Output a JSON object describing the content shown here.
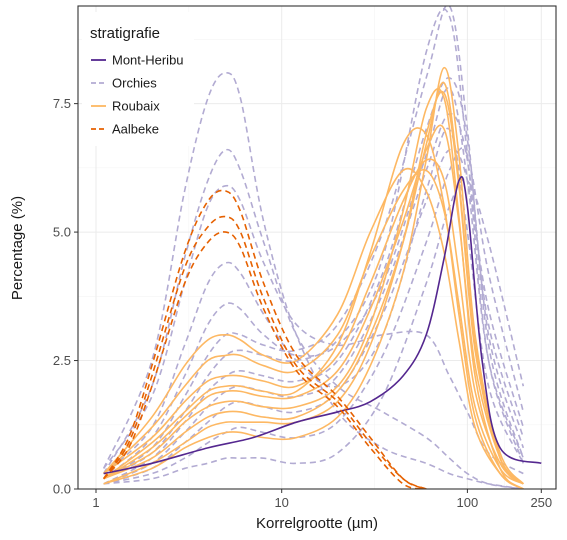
{
  "chart_data": {
    "type": "line",
    "xscale": "log10",
    "xlabel": "Korrelgrootte (µm)",
    "ylabel": "Percentage (%)",
    "xlim": [
      0.8,
      300
    ],
    "ylim": [
      0,
      9.4
    ],
    "x_ticks": [
      1,
      10,
      100,
      250
    ],
    "y_ticks": [
      0.0,
      2.5,
      5.0,
      7.5
    ],
    "y_tick_labels": [
      "0.0",
      "2.5",
      "5.0",
      "7.5"
    ],
    "grid": true,
    "legend": {
      "title": "stratigrafie",
      "position": "top-left"
    },
    "groups": [
      {
        "name": "Mont-Heribu",
        "color": "#54278f",
        "dash": "solid",
        "curves": [
          {
            "x": [
              1.1,
              2,
              4,
              7,
              12,
              20,
              30,
              45,
              60,
              75,
              90,
              100,
              120,
              150,
              250
            ],
            "y": [
              0.3,
              0.5,
              0.8,
              1.0,
              1.3,
              1.5,
              1.7,
              2.2,
              3.0,
              4.5,
              6.0,
              5.5,
              2.5,
              0.8,
              0.5
            ]
          }
        ]
      },
      {
        "name": "Orchies",
        "color": "#b2abd2",
        "dash": "dashed",
        "curves": [
          {
            "x": [
              1.1,
              2,
              3,
              4,
              5,
              6,
              8,
              12,
              20,
              35,
              60,
              80,
              100,
              130,
              200
            ],
            "y": [
              0.4,
              2.5,
              5.8,
              7.6,
              8.1,
              7.6,
              5.2,
              3.0,
              1.5,
              0.8,
              0.5,
              0.3,
              0.2,
              0.1,
              0.0
            ]
          },
          {
            "x": [
              1.1,
              2,
              3,
              4,
              5,
              6,
              8,
              12,
              20,
              35,
              60,
              80,
              100,
              130,
              200
            ],
            "y": [
              0.3,
              2.0,
              4.5,
              6.0,
              6.6,
              6.2,
              4.8,
              3.0,
              2.0,
              1.5,
              1.0,
              0.6,
              0.3,
              0.1,
              0.0
            ]
          },
          {
            "x": [
              1.1,
              2,
              3,
              4,
              5,
              6,
              8,
              12,
              20,
              35,
              60,
              80,
              100,
              130,
              200
            ],
            "y": [
              0.4,
              1.8,
              4.0,
              5.5,
              5.9,
              5.6,
              4.4,
              3.2,
              2.8,
              3.0,
              3.0,
              2.2,
              1.5,
              0.7,
              0.3
            ]
          },
          {
            "x": [
              1.1,
              2,
              3,
              4,
              5,
              6,
              8,
              12,
              20,
              35,
              60,
              80,
              100,
              130,
              200
            ],
            "y": [
              0.3,
              1.2,
              2.8,
              4.0,
              4.4,
              4.2,
              3.4,
              2.5,
              2.0,
              3.0,
              5.8,
              7.0,
              5.0,
              2.0,
              0.5
            ]
          },
          {
            "x": [
              1.1,
              2,
              3,
              4,
              5,
              6,
              8,
              12,
              20,
              35,
              60,
              80,
              100,
              130,
              200
            ],
            "y": [
              0.2,
              1.0,
              2.2,
              3.2,
              3.6,
              3.5,
              3.0,
              2.6,
              2.8,
              4.0,
              6.5,
              7.8,
              6.0,
              2.5,
              0.6
            ]
          },
          {
            "x": [
              1.1,
              2,
              3,
              4,
              5,
              6,
              8,
              12,
              20,
              35,
              60,
              80,
              100,
              130,
              200
            ],
            "y": [
              0.2,
              0.8,
              1.8,
              2.6,
              3.0,
              3.0,
              2.8,
              2.7,
              3.2,
              5.0,
              8.0,
              9.4,
              7.0,
              2.8,
              0.6
            ]
          },
          {
            "x": [
              1.1,
              2,
              3,
              4,
              5,
              6,
              8,
              12,
              20,
              35,
              60,
              80,
              100,
              130,
              200
            ],
            "y": [
              0.2,
              0.7,
              1.5,
              2.2,
              2.6,
              2.7,
              2.6,
              2.5,
              2.9,
              4.5,
              8.5,
              9.2,
              6.5,
              2.5,
              0.5
            ]
          },
          {
            "x": [
              1.1,
              2,
              3,
              4,
              5,
              6,
              8,
              12,
              20,
              35,
              60,
              80,
              100,
              130,
              200
            ],
            "y": [
              0.1,
              0.6,
              1.3,
              1.9,
              2.2,
              2.3,
              2.2,
              2.1,
              2.5,
              4.2,
              7.0,
              8.0,
              6.8,
              3.0,
              0.8
            ]
          },
          {
            "x": [
              1.1,
              2,
              3,
              4,
              5,
              6,
              8,
              12,
              20,
              35,
              60,
              80,
              100,
              130,
              200
            ],
            "y": [
              0.1,
              0.5,
              1.1,
              1.6,
              1.9,
              2.0,
              1.9,
              1.8,
              2.2,
              3.8,
              6.2,
              7.3,
              6.4,
              3.2,
              1.0
            ]
          },
          {
            "x": [
              1.1,
              2,
              3,
              4,
              5,
              6,
              8,
              12,
              20,
              35,
              60,
              80,
              100,
              130,
              200
            ],
            "y": [
              0.1,
              0.4,
              0.9,
              1.3,
              1.6,
              1.7,
              1.6,
              1.5,
              1.9,
              3.4,
              5.6,
              6.6,
              6.0,
              3.5,
              1.2
            ]
          },
          {
            "x": [
              1.1,
              2,
              3,
              4,
              5,
              6,
              8,
              12,
              20,
              35,
              60,
              80,
              100,
              130,
              200
            ],
            "y": [
              0.1,
              0.3,
              0.6,
              0.9,
              1.1,
              1.2,
              1.1,
              1.0,
              1.3,
              2.6,
              4.8,
              6.2,
              6.5,
              4.2,
              1.5
            ]
          },
          {
            "x": [
              1.1,
              2,
              3,
              4,
              5,
              6,
              8,
              12,
              20,
              35,
              60,
              80,
              100,
              130,
              200
            ],
            "y": [
              0.1,
              0.2,
              0.4,
              0.5,
              0.6,
              0.6,
              0.6,
              0.5,
              0.7,
              1.8,
              4.0,
              5.5,
              6.0,
              4.8,
              2.0
            ]
          }
        ]
      },
      {
        "name": "Roubaix",
        "color": "#fdb863",
        "dash": "solid",
        "curves": [
          {
            "x": [
              1.1,
              2,
              3,
              4,
              5,
              6,
              8,
              12,
              20,
              30,
              45,
              60,
              75,
              90,
              110,
              150,
              200
            ],
            "y": [
              0.1,
              0.4,
              0.8,
              1.0,
              1.1,
              1.1,
              1.0,
              1.0,
              1.4,
              2.4,
              4.2,
              6.4,
              8.2,
              6.5,
              3.0,
              0.6,
              0.1
            ]
          },
          {
            "x": [
              1.1,
              2,
              3,
              4,
              5,
              6,
              8,
              12,
              20,
              30,
              45,
              60,
              75,
              90,
              110,
              150,
              200
            ],
            "y": [
              0.2,
              0.6,
              1.1,
              1.4,
              1.5,
              1.5,
              1.4,
              1.4,
              1.9,
              3.0,
              4.8,
              6.7,
              7.9,
              6.0,
              2.8,
              0.7,
              0.1
            ]
          },
          {
            "x": [
              1.1,
              2,
              3,
              4,
              5,
              6,
              8,
              12,
              20,
              30,
              45,
              60,
              75,
              90,
              110,
              150,
              200
            ],
            "y": [
              0.2,
              0.8,
              1.4,
              1.8,
              1.9,
              1.9,
              1.8,
              1.8,
              2.3,
              3.5,
              5.2,
              6.6,
              7.0,
              5.2,
              2.4,
              0.6,
              0.1
            ]
          },
          {
            "x": [
              1.1,
              2,
              3,
              4,
              5,
              6,
              8,
              12,
              20,
              30,
              45,
              60,
              75,
              90,
              110,
              150,
              200
            ],
            "y": [
              0.3,
              1.0,
              1.7,
              2.1,
              2.2,
              2.2,
              2.1,
              2.0,
              2.6,
              4.0,
              5.6,
              6.4,
              6.0,
              4.2,
              1.9,
              0.5,
              0.1
            ]
          },
          {
            "x": [
              1.1,
              2,
              3,
              4,
              5,
              6,
              8,
              12,
              20,
              30,
              45,
              60,
              75,
              90,
              110,
              150,
              200
            ],
            "y": [
              0.3,
              1.2,
              2.0,
              2.5,
              2.6,
              2.6,
              2.4,
              2.3,
              3.0,
              4.5,
              5.8,
              6.2,
              5.4,
              3.6,
              1.6,
              0.4,
              0.1
            ]
          },
          {
            "x": [
              1.1,
              2,
              3,
              4,
              5,
              6,
              8,
              12,
              20,
              30,
              45,
              60,
              75,
              90,
              110,
              150,
              200
            ],
            "y": [
              0.3,
              1.4,
              2.4,
              2.9,
              3.0,
              2.9,
              2.6,
              2.5,
              3.4,
              5.0,
              6.2,
              5.8,
              4.6,
              2.9,
              1.2,
              0.3,
              0.0
            ]
          },
          {
            "x": [
              1.1,
              2,
              3,
              4,
              5,
              6,
              8,
              12,
              20,
              30,
              45,
              60,
              75,
              90,
              110,
              150,
              200
            ],
            "y": [
              0.2,
              0.9,
              1.5,
              1.9,
              2.0,
              2.0,
              1.9,
              1.9,
              2.8,
              4.6,
              6.7,
              6.9,
              5.5,
              3.4,
              1.4,
              0.3,
              0.0
            ]
          },
          {
            "x": [
              1.1,
              2,
              3,
              4,
              5,
              6,
              8,
              12,
              20,
              30,
              45,
              60,
              75,
              90,
              110,
              150,
              200
            ],
            "y": [
              0.2,
              0.7,
              1.3,
              1.6,
              1.7,
              1.7,
              1.6,
              1.6,
              2.0,
              3.2,
              5.4,
              7.4,
              7.6,
              5.3,
              2.2,
              0.4,
              0.0
            ]
          },
          {
            "x": [
              1.1,
              2,
              3,
              4,
              5,
              6,
              8,
              12,
              20,
              30,
              45,
              60,
              75,
              90,
              110,
              150,
              200
            ],
            "y": [
              0.1,
              0.5,
              0.9,
              1.2,
              1.3,
              1.3,
              1.3,
              1.3,
              1.7,
              2.8,
              4.8,
              6.9,
              7.7,
              5.9,
              2.7,
              0.6,
              0.1
            ]
          }
        ]
      },
      {
        "name": "Aalbeke",
        "color": "#e66101",
        "dash": "dashed",
        "curves": [
          {
            "x": [
              1.1,
              1.5,
              2,
              3,
              4,
              5,
              6,
              8,
              12,
              20,
              30,
              45,
              60
            ],
            "y": [
              0.2,
              1.0,
              2.4,
              4.6,
              5.6,
              5.8,
              5.4,
              4.0,
              2.6,
              1.8,
              1.0,
              0.2,
              0.0
            ]
          },
          {
            "x": [
              1.1,
              1.5,
              2,
              3,
              4,
              5,
              6,
              8,
              12,
              20,
              30,
              45,
              60
            ],
            "y": [
              0.2,
              0.9,
              2.2,
              4.3,
              5.1,
              5.3,
              5.0,
              3.7,
              2.4,
              1.7,
              0.9,
              0.2,
              0.0
            ]
          },
          {
            "x": [
              1.1,
              1.5,
              2,
              3,
              4,
              5,
              6,
              8,
              12,
              20,
              30,
              45,
              60
            ],
            "y": [
              0.2,
              0.8,
              2.0,
              4.0,
              4.8,
              5.0,
              4.7,
              3.5,
              2.3,
              1.6,
              0.8,
              0.1,
              0.0
            ]
          }
        ]
      }
    ]
  }
}
